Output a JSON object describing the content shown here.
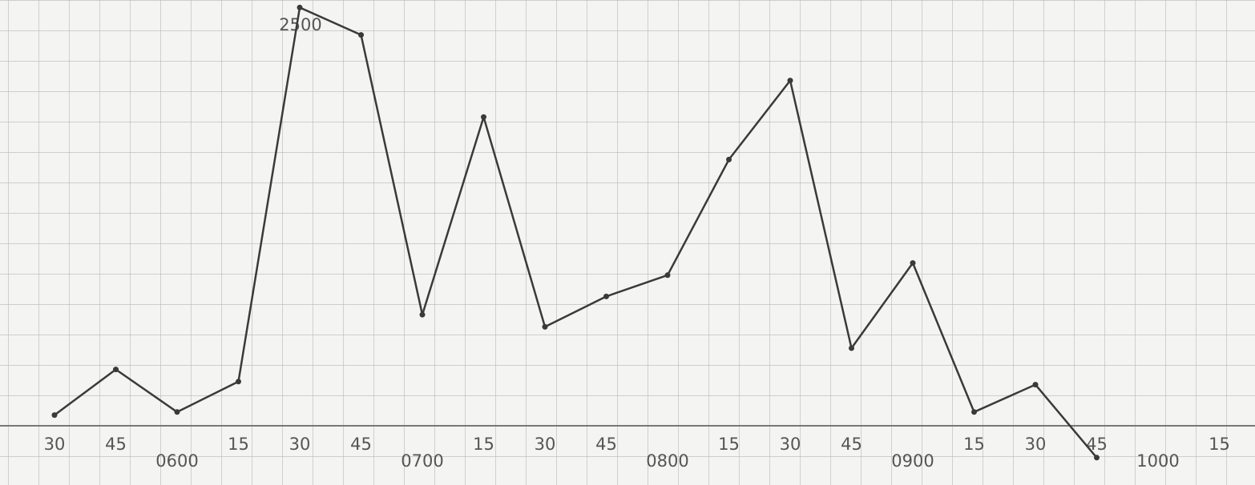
{
  "chart_data": {
    "type": "line",
    "annotations": [
      "2500"
    ],
    "categories": [
      "30",
      "45",
      "0600",
      "15",
      "30",
      "45",
      "0700",
      "15",
      "30",
      "45",
      "0800",
      "15",
      "30",
      "45",
      "0900",
      "15",
      "30",
      "45",
      "1000",
      "15"
    ],
    "series": [
      {
        "color": "#3a3a3a",
        "values": [
          0.3,
          1.8,
          0.4,
          1.4,
          13.7,
          12.8,
          3.6,
          10.1,
          3.2,
          4.2,
          4.9,
          8.7,
          11.3,
          2.5,
          5.3,
          0.4,
          1.3,
          -1.1,
          null,
          null
        ]
      }
    ],
    "ylim": [
      -2,
      14
    ]
  }
}
